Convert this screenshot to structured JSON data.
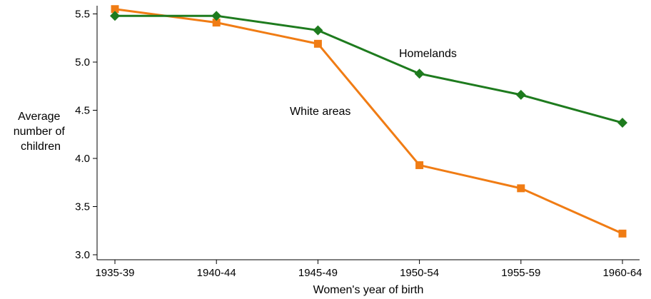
{
  "chart_data": {
    "type": "line",
    "categories": [
      "1935-39",
      "1940-44",
      "1945-49",
      "1950-54",
      "1955-59",
      "1960-64"
    ],
    "series": [
      {
        "name": "Homelands",
        "values": [
          5.48,
          5.48,
          5.33,
          4.88,
          4.66,
          4.37
        ],
        "color": "#1e7b1e",
        "marker": "diamond"
      },
      {
        "name": "White areas",
        "values": [
          5.55,
          5.41,
          5.19,
          3.93,
          3.69,
          3.22
        ],
        "color": "#f07c14",
        "marker": "square"
      }
    ],
    "xlabel": "Women's year of birth",
    "ylabel_lines": [
      "Average",
      "number of",
      "children"
    ],
    "yticks": [
      3.0,
      3.5,
      4.0,
      4.5,
      5.0,
      5.5
    ],
    "ytick_labels": [
      "3.0",
      "3.5",
      "4.0",
      "4.5",
      "5.0",
      "5.5"
    ],
    "ylim": [
      3.0,
      5.55
    ],
    "grid": false,
    "legend": "direct labels on lines"
  }
}
